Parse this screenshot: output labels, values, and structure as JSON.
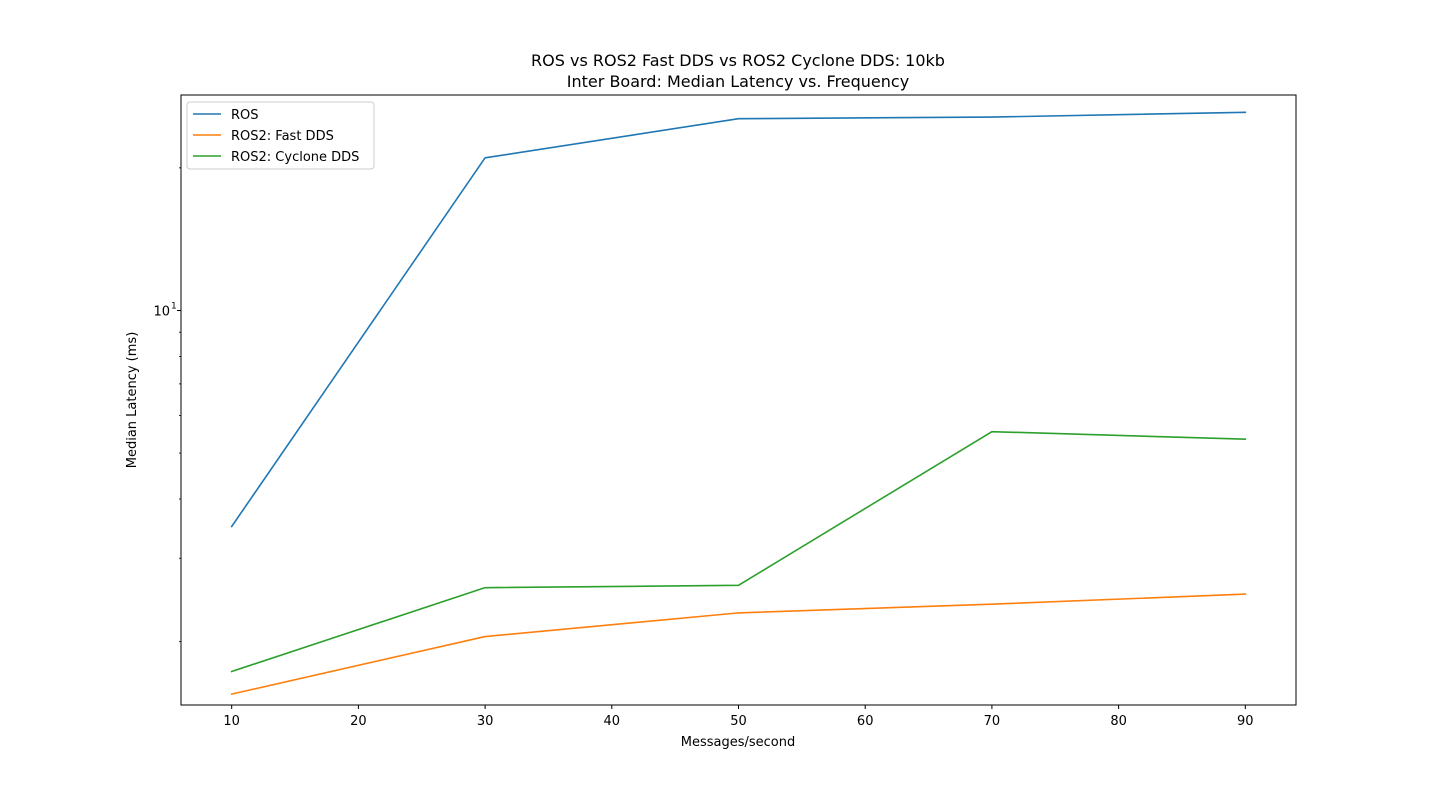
{
  "chart_data": {
    "type": "line",
    "title": "ROS vs ROS2 Fast DDS vs ROS2 Cyclone DDS: 10kb",
    "subtitle": "Inter Board: Median Latency vs. Frequency",
    "xlabel": "Messages/second",
    "ylabel": "Median Latency (ms)",
    "yscale": "log",
    "xlim": [
      6,
      94
    ],
    "ylim": [
      1.47,
      28.5
    ],
    "x": [
      10,
      30,
      50,
      70,
      90
    ],
    "x_ticks": [
      10,
      20,
      30,
      40,
      50,
      60,
      70,
      80,
      90
    ],
    "y_ticks": [
      {
        "base": "10",
        "exponent": "1",
        "value": 10
      }
    ],
    "grid": false,
    "legend_position": "top-left",
    "series": [
      {
        "name": "ROS",
        "color": "#1f77b4",
        "values": [
          3.5,
          21.0,
          25.4,
          25.6,
          26.2
        ]
      },
      {
        "name": "ROS2: Fast DDS",
        "color": "#ff7f0e",
        "values": [
          1.55,
          2.05,
          2.3,
          2.4,
          2.52
        ]
      },
      {
        "name": "ROS2: Cyclone DDS",
        "color": "#2ca02c",
        "values": [
          1.73,
          2.6,
          2.63,
          5.55,
          5.35
        ]
      }
    ]
  }
}
